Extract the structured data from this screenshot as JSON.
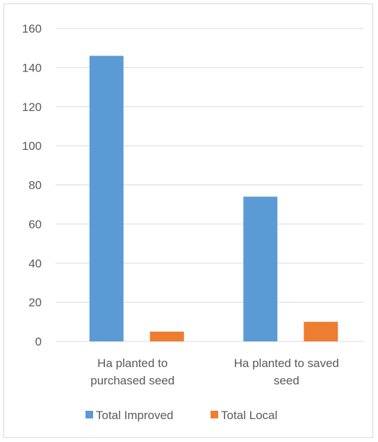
{
  "chart_data": {
    "type": "bar",
    "title": "",
    "xlabel": "",
    "ylabel": "",
    "categories": [
      [
        "Ha planted to",
        "purchased seed"
      ],
      [
        "Ha planted to saved",
        "seed"
      ]
    ],
    "series": [
      {
        "name": "Total Improved",
        "values": [
          146,
          74
        ],
        "color": "#5b9bd5"
      },
      {
        "name": "Total Local",
        "values": [
          5,
          10
        ],
        "color": "#ed7d31"
      }
    ],
    "ylim": [
      0,
      160
    ],
    "y_ticks": [
      0,
      20,
      40,
      60,
      80,
      100,
      120,
      140,
      160
    ],
    "grid": true,
    "legend_position": "bottom"
  }
}
